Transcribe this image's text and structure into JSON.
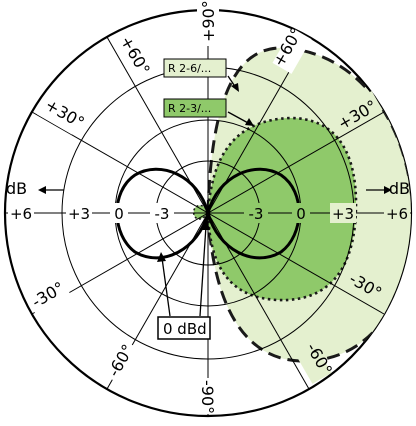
{
  "diagram": {
    "angle_labels": {
      "top": "+90°",
      "upper_left_60": "+60°",
      "upper_left_30": "+30°",
      "upper_right_60": "+60°",
      "upper_right_30": "+30°",
      "lower_left_30": "-30°",
      "lower_left_60": "-60°",
      "lower_right_30": "-30°",
      "lower_right_60": "-60°",
      "bottom": "-90°"
    },
    "db_axis": {
      "unit": "dB",
      "left_ticks": [
        "+6",
        "+3",
        "0",
        "-3"
      ],
      "right_ticks": [
        "-3",
        "0",
        "+3",
        "+6"
      ]
    },
    "callouts": {
      "outer_pattern": "R 2-6/...",
      "inner_pattern": "R 2-3/...",
      "reference": "0 dBd"
    },
    "colors": {
      "outer_fill": "#e4f0cf",
      "inner_fill": "#8fc96a",
      "stroke": "#000000"
    }
  }
}
